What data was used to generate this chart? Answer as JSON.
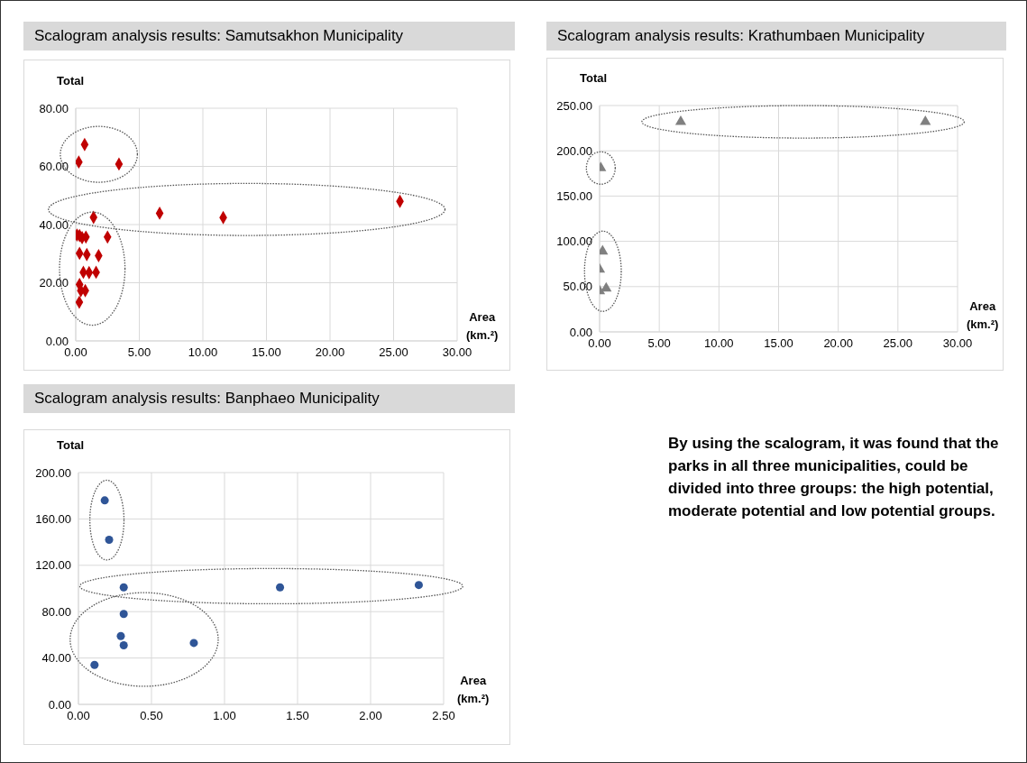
{
  "chart_data": [
    {
      "type": "scatter",
      "title": "Scalogram analysis results: Samutsakhon Municipality",
      "xlabel": "Area (km.²)",
      "ylabel": "Total",
      "marker": "diamond",
      "grid": true,
      "xlim": [
        0,
        30
      ],
      "xticks": [
        {
          "value": 0,
          "label": "0.00"
        },
        {
          "value": 5,
          "label": "5.00"
        },
        {
          "value": 10,
          "label": "10.00"
        },
        {
          "value": 15,
          "label": "15.00"
        },
        {
          "value": 20,
          "label": "20.00"
        },
        {
          "value": 25,
          "label": "25.00"
        },
        {
          "value": 30,
          "label": "30.00"
        }
      ],
      "ylim": [
        0,
        80
      ],
      "yticks": [
        {
          "value": 0,
          "label": "0.00"
        },
        {
          "value": 20,
          "label": "20.00"
        },
        {
          "value": 40,
          "label": "40.00"
        },
        {
          "value": 60,
          "label": "60.00"
        },
        {
          "value": 80,
          "label": "80.00"
        }
      ],
      "series": [
        {
          "color": "#c00000",
          "x": [
            0.7,
            0.24,
            3.4
          ],
          "values": [
            67.5,
            61.5,
            60.8
          ]
        },
        {
          "color": "#c00000",
          "x": [
            1.4,
            6.6,
            11.6,
            25.5
          ],
          "values": [
            42.5,
            43.9,
            42.4,
            48
          ]
        },
        {
          "color": "#c00000",
          "x": [
            0.1,
            0.3,
            0.5,
            0.8,
            2.5,
            0.3,
            0.87,
            1.8,
            0.6,
            1.05,
            1.6,
            0.3,
            0.4,
            0.75,
            0.28
          ],
          "values": [
            36.4,
            36.2,
            35.5,
            35.7,
            35.7,
            30.1,
            29.7,
            29.3,
            23.6,
            23.5,
            23.6,
            19.4,
            17.3,
            17.3,
            13.3
          ]
        }
      ]
    },
    {
      "type": "scatter",
      "title": "Scalogram analysis results: Krathumbaen Municipality",
      "xlabel": "Area (km.²)",
      "ylabel": "Total",
      "marker": "triangle",
      "grid": true,
      "xlim": [
        0,
        30
      ],
      "xticks": [
        {
          "value": 0,
          "label": "0.00"
        },
        {
          "value": 5,
          "label": "5.00"
        },
        {
          "value": 10,
          "label": "10.00"
        },
        {
          "value": 15,
          "label": "15.00"
        },
        {
          "value": 20,
          "label": "20.00"
        },
        {
          "value": 25,
          "label": "25.00"
        },
        {
          "value": 30,
          "label": "30.00"
        }
      ],
      "ylim": [
        0,
        250
      ],
      "yticks": [
        {
          "value": 0,
          "label": "0.00"
        },
        {
          "value": 50,
          "label": "50.00"
        },
        {
          "value": 100,
          "label": "100.00"
        },
        {
          "value": 150,
          "label": "150.00"
        },
        {
          "value": 200,
          "label": "200.00"
        },
        {
          "value": 250,
          "label": "250.00"
        }
      ],
      "series": [
        {
          "color": "#808080",
          "x": [
            6.8,
            27.3
          ],
          "values": [
            232,
            232
          ]
        },
        {
          "color": "#808080",
          "x": [
            0.1
          ],
          "values": [
            181
          ]
        },
        {
          "color": "#808080",
          "x": [
            0.25,
            0.0,
            0.0,
            0.55
          ],
          "values": [
            89,
            69,
            45,
            48
          ]
        }
      ]
    },
    {
      "type": "scatter",
      "title": "Scalogram analysis results: Banphaeo Municipality",
      "xlabel": "Area (km.²)",
      "ylabel": "Total",
      "marker": "circle",
      "grid": true,
      "xlim": [
        0,
        2.5
      ],
      "xticks": [
        {
          "value": 0,
          "label": "0.00"
        },
        {
          "value": 0.5,
          "label": "0.50"
        },
        {
          "value": 1,
          "label": "1.00"
        },
        {
          "value": 1.5,
          "label": "1.50"
        },
        {
          "value": 2,
          "label": "2.00"
        },
        {
          "value": 2.5,
          "label": "2.50"
        }
      ],
      "ylim": [
        0,
        200
      ],
      "yticks": [
        {
          "value": 0,
          "label": "0.00"
        },
        {
          "value": 40,
          "label": "40.00"
        },
        {
          "value": 80,
          "label": "80.00"
        },
        {
          "value": 120,
          "label": "120.00"
        },
        {
          "value": 160,
          "label": "160.00"
        },
        {
          "value": 200,
          "label": "200.00"
        }
      ],
      "series": [
        {
          "color": "#2f5597",
          "x": [
            0.18,
            0.21
          ],
          "values": [
            176,
            142
          ]
        },
        {
          "color": "#2f5597",
          "x": [
            0.31,
            1.38,
            2.33
          ],
          "values": [
            101,
            101,
            103
          ]
        },
        {
          "color": "#2f5597",
          "x": [
            0.31,
            0.29,
            0.31,
            0.79,
            0.11
          ],
          "values": [
            78,
            59,
            51,
            53,
            34
          ]
        }
      ]
    },
    {
      "type": "other",
      "annotations": [
        "By using the scalogram, it was found that the parks in all three municipalities, could be divided into three groups: the high potential, moderate potential and low potential groups."
      ]
    }
  ]
}
